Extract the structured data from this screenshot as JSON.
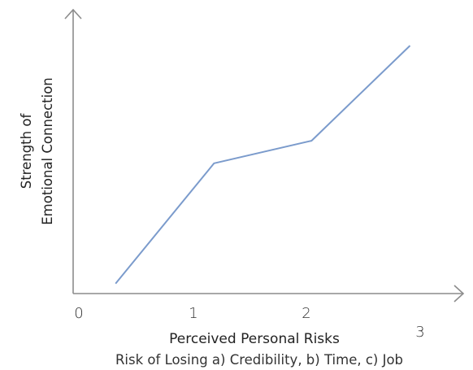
{
  "chart_data": {
    "type": "line",
    "title": "",
    "xlabel": "Perceived Personal Risks",
    "xlabel_sub": "Risk of Losing a) Credibility, b) Time, c) Job",
    "ylabel_line1": "Strength of",
    "ylabel_line2": "Emotional Connection",
    "x_ticks": [
      "0",
      "1",
      "2",
      "3"
    ],
    "grid": false,
    "legend": "none",
    "line_color": "#7b9bcc",
    "axis_color": "#8c8c8c",
    "x": [
      0.37,
      1.23,
      2.08,
      2.94
    ],
    "y": [
      0.04,
      0.52,
      0.61,
      0.99
    ],
    "xlim": [
      0,
      3.2
    ],
    "ylim": [
      0,
      1.1
    ]
  }
}
